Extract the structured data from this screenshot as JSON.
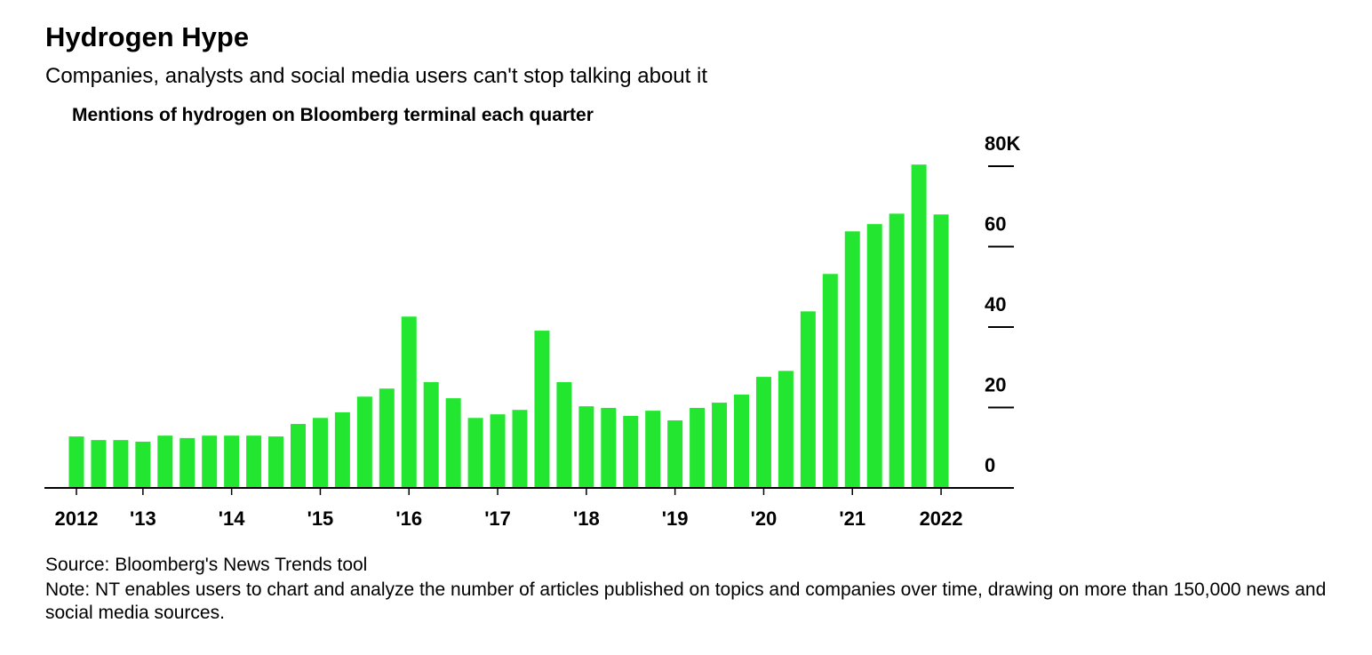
{
  "chart_data": {
    "type": "bar",
    "title": "Hydrogen Hype",
    "subtitle": "Companies, analysts and social media users can't stop talking about it",
    "y_label": "Mentions of hydrogen on Bloomberg terminal each quarter",
    "source": "Source: Bloomberg's News Trends tool",
    "note": "Note: NT enables users to chart and analyze the number of articles published on topics and companies over time, drawing on more than 150,000 news and social media sources.",
    "categories": [
      "2012",
      null,
      null,
      "'13",
      null,
      null,
      null,
      "'14",
      null,
      null,
      null,
      "'15",
      null,
      null,
      null,
      "'16",
      null,
      null,
      null,
      "'17",
      null,
      null,
      null,
      "'18",
      null,
      null,
      null,
      "'19",
      null,
      null,
      null,
      "'20",
      null,
      null,
      null,
      "'21",
      null,
      null,
      null,
      "2022"
    ],
    "values": [
      12.8,
      11.9,
      11.9,
      11.5,
      13.0,
      12.4,
      13.0,
      13.0,
      13.0,
      12.8,
      15.9,
      17.4,
      18.8,
      22.7,
      24.7,
      42.6,
      26.3,
      22.3,
      17.4,
      18.3,
      19.4,
      39.1,
      26.3,
      20.3,
      19.9,
      17.9,
      19.2,
      16.8,
      19.9,
      21.2,
      23.2,
      27.6,
      29.1,
      43.9,
      53.2,
      63.8,
      65.6,
      68.2,
      80.4,
      68.0
    ],
    "color": "#22e62f",
    "ylim": [
      0,
      80
    ],
    "yticks": [
      0,
      20,
      40,
      60,
      {
        "value": 80,
        "label": "80K"
      }
    ]
  }
}
